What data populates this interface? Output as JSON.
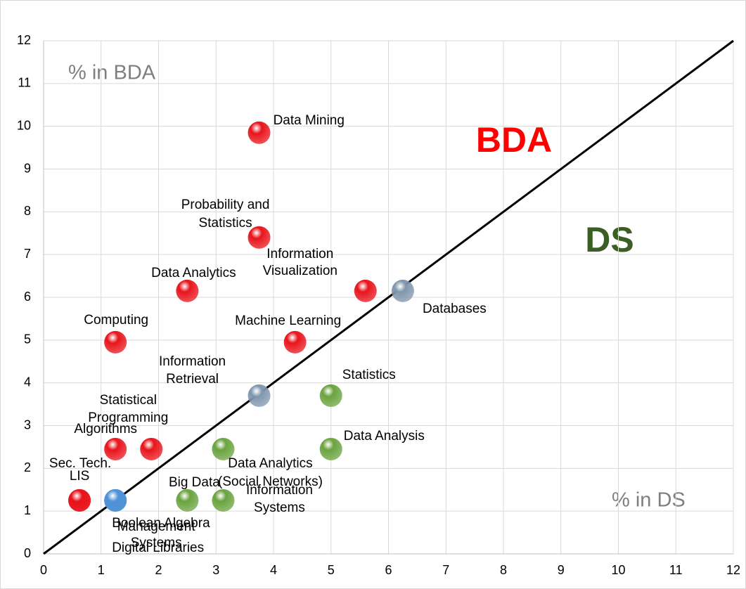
{
  "chart_data": {
    "type": "scatter",
    "annotations": {
      "y_axis_note": "%  in BDA",
      "x_axis_note": "% in DS",
      "upper_region": "BDA",
      "lower_region": "DS"
    },
    "point_labels": [
      [
        "Data Mining"
      ],
      [
        "Probability and",
        "Statistics"
      ],
      [
        "Data Analytics"
      ],
      [
        "Information",
        "Visualization"
      ],
      [
        "Databases"
      ],
      [
        "Computing"
      ],
      [
        "Machine Learning"
      ],
      [
        "Information",
        "Retrieval"
      ],
      [
        "Statistics"
      ],
      [
        "Statistical",
        "Programming"
      ],
      [
        "Algorithms"
      ],
      [
        "Data Analytics",
        "(Social Networks)"
      ],
      [
        "Data Analysis"
      ],
      [
        "Sec. Tech."
      ],
      [
        "LIS"
      ],
      [
        "Boolean Algebra"
      ],
      [
        "Management",
        "Systems"
      ],
      [
        "Digital Libraries"
      ],
      [
        "Big Data"
      ],
      [
        "Information",
        "Systems"
      ]
    ],
    "x": [
      3.75,
      3.75,
      2.5,
      5.6,
      6.25,
      1.25,
      4.375,
      3.75,
      5.0,
      1.875,
      1.25,
      3.125,
      5.0,
      0.625,
      0.625,
      1.25,
      1.25,
      1.25,
      2.5,
      3.125
    ],
    "values": [
      9.85,
      7.4,
      6.15,
      6.15,
      6.15,
      4.95,
      4.95,
      3.7,
      3.7,
      2.45,
      2.45,
      2.45,
      2.45,
      1.25,
      1.25,
      1.25,
      1.25,
      1.25,
      1.25,
      1.25
    ],
    "colors": [
      "#e8141b",
      "#e8141b",
      "#e8141b",
      "#e8141b",
      "#8096ad",
      "#e8141b",
      "#e8141b",
      "#8096ad",
      "#6aa33f",
      "#e8141b",
      "#e8141b",
      "#6aa33f",
      "#6aa33f",
      "#e8141b",
      "#e8141b",
      "#4f93d6",
      "#4f93d6",
      "#4f93d6",
      "#6aa33f",
      "#6aa33f"
    ],
    "xlim": [
      0,
      12
    ],
    "ylim": [
      0,
      12
    ],
    "xticks": [
      0,
      1,
      2,
      3,
      4,
      5,
      6,
      7,
      8,
      9,
      10,
      11,
      12
    ],
    "yticks": [
      0,
      1,
      2,
      3,
      4,
      5,
      6,
      7,
      8,
      9,
      10,
      11,
      12
    ],
    "grid": true,
    "diagonal_color": "#000000"
  }
}
